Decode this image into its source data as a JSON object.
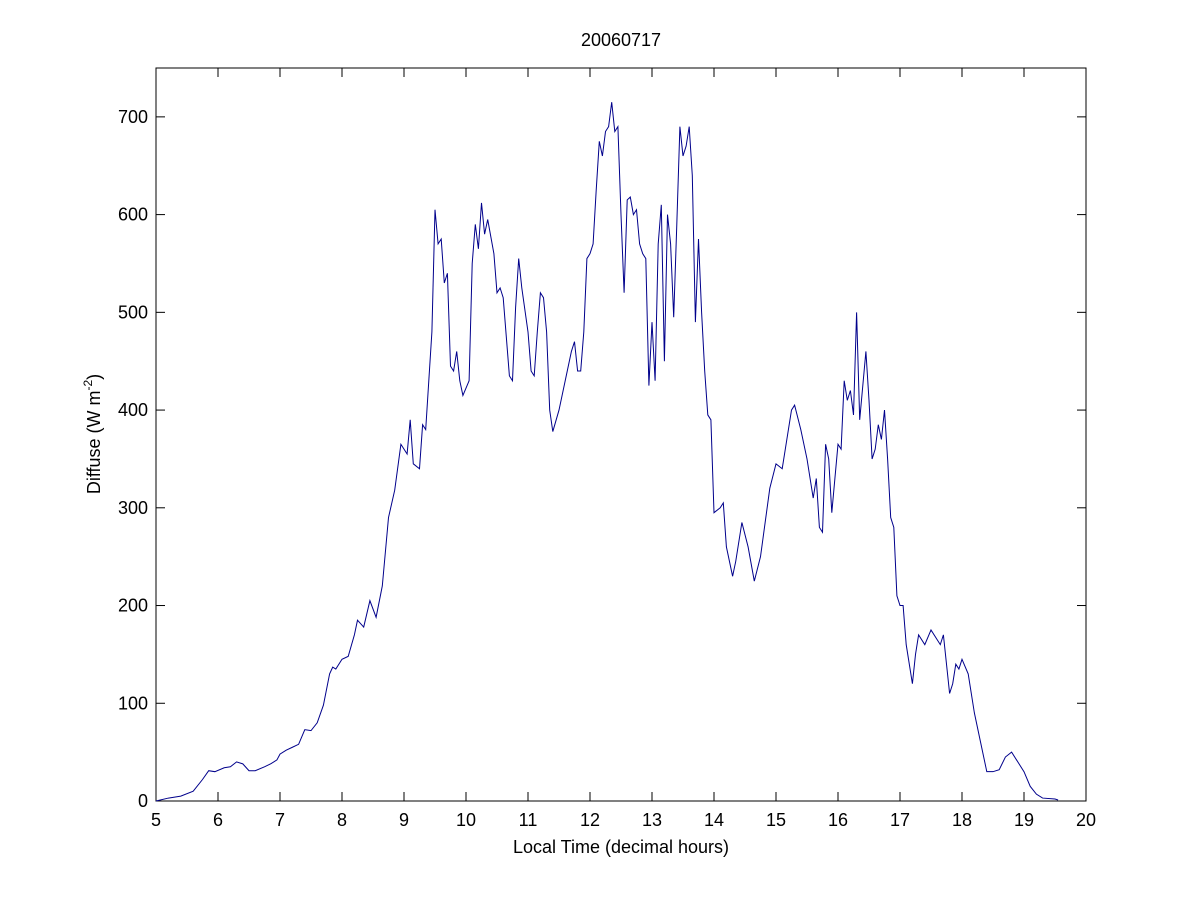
{
  "chart_data": {
    "type": "line",
    "title": "20060717",
    "xlabel": "Local Time (decimal hours)",
    "ylabel": "Diffuse (W m",
    "ylabel_superscript": "-2",
    "ylabel_suffix": ")",
    "xlim": [
      5,
      20
    ],
    "ylim": [
      0,
      750
    ],
    "xticks": [
      5,
      6,
      7,
      8,
      9,
      10,
      11,
      12,
      13,
      14,
      15,
      16,
      17,
      18,
      19,
      20
    ],
    "yticks": [
      0,
      100,
      200,
      300,
      400,
      500,
      600,
      700
    ],
    "x": [
      5.0,
      5.2,
      5.4,
      5.6,
      5.75,
      5.85,
      5.95,
      6.1,
      6.2,
      6.3,
      6.4,
      6.5,
      6.6,
      6.75,
      6.85,
      6.95,
      7.0,
      7.1,
      7.2,
      7.3,
      7.4,
      7.5,
      7.6,
      7.7,
      7.8,
      7.85,
      7.9,
      8.0,
      8.1,
      8.2,
      8.25,
      8.35,
      8.45,
      8.55,
      8.65,
      8.75,
      8.85,
      8.95,
      9.0,
      9.05,
      9.1,
      9.15,
      9.25,
      9.3,
      9.35,
      9.45,
      9.5,
      9.55,
      9.6,
      9.65,
      9.7,
      9.75,
      9.8,
      9.85,
      9.9,
      9.95,
      10.05,
      10.1,
      10.15,
      10.2,
      10.25,
      10.3,
      10.35,
      10.45,
      10.5,
      10.55,
      10.6,
      10.7,
      10.75,
      10.8,
      10.85,
      10.9,
      11.0,
      11.05,
      11.1,
      11.15,
      11.2,
      11.25,
      11.3,
      11.35,
      11.4,
      11.5,
      11.6,
      11.7,
      11.75,
      11.8,
      11.85,
      11.9,
      11.95,
      12.0,
      12.05,
      12.1,
      12.15,
      12.2,
      12.25,
      12.3,
      12.35,
      12.4,
      12.45,
      12.5,
      12.55,
      12.6,
      12.65,
      12.7,
      12.75,
      12.8,
      12.85,
      12.9,
      12.95,
      13.0,
      13.05,
      13.1,
      13.15,
      13.2,
      13.25,
      13.3,
      13.35,
      13.4,
      13.45,
      13.5,
      13.55,
      13.6,
      13.65,
      13.7,
      13.75,
      13.8,
      13.85,
      13.9,
      13.95,
      14.0,
      14.1,
      14.15,
      14.2,
      14.3,
      14.35,
      14.45,
      14.55,
      14.65,
      14.75,
      14.9,
      15.0,
      15.1,
      15.15,
      15.25,
      15.3,
      15.4,
      15.5,
      15.6,
      15.65,
      15.7,
      15.75,
      15.8,
      15.85,
      15.9,
      15.95,
      16.0,
      16.05,
      16.1,
      16.15,
      16.2,
      16.25,
      16.3,
      16.35,
      16.45,
      16.5,
      16.55,
      16.6,
      16.65,
      16.7,
      16.75,
      16.8,
      16.85,
      16.9,
      16.95,
      17.0,
      17.05,
      17.1,
      17.2,
      17.25,
      17.3,
      17.4,
      17.5,
      17.6,
      17.65,
      17.7,
      17.8,
      17.85,
      17.9,
      17.95,
      18.0,
      18.1,
      18.2,
      18.3,
      18.4,
      18.5,
      18.6,
      18.7,
      18.8,
      18.9,
      19.0,
      19.1,
      19.2,
      19.3,
      19.5,
      19.55
    ],
    "series": [
      {
        "color": "#00008b",
        "values": [
          0,
          3,
          5,
          10,
          22,
          31,
          30,
          34,
          35,
          40,
          38,
          31,
          31,
          35,
          38,
          42,
          48,
          52,
          55,
          58,
          73,
          72,
          80,
          98,
          130,
          137,
          135,
          145,
          148,
          170,
          185,
          178,
          205,
          188,
          220,
          290,
          318,
          365,
          360,
          355,
          390,
          345,
          340,
          385,
          380,
          480,
          605,
          570,
          575,
          530,
          540,
          445,
          440,
          460,
          430,
          415,
          430,
          550,
          590,
          565,
          612,
          580,
          595,
          560,
          520,
          525,
          515,
          435,
          430,
          505,
          555,
          525,
          480,
          440,
          435,
          480,
          520,
          515,
          480,
          400,
          378,
          400,
          430,
          460,
          470,
          440,
          440,
          480,
          555,
          560,
          570,
          625,
          675,
          660,
          685,
          690,
          715,
          685,
          690,
          600,
          520,
          615,
          618,
          600,
          605,
          570,
          560,
          555,
          425,
          490,
          430,
          570,
          610,
          450,
          600,
          570,
          495,
          590,
          690,
          660,
          670,
          690,
          640,
          490,
          575,
          500,
          440,
          395,
          390,
          295,
          300,
          305,
          260,
          230,
          245,
          285,
          260,
          225,
          250,
          320,
          345,
          340,
          360,
          400,
          405,
          380,
          350,
          310,
          330,
          280,
          275,
          365,
          350,
          295,
          330,
          365,
          360,
          430,
          410,
          420,
          395,
          500,
          390,
          460,
          410,
          350,
          360,
          385,
          370,
          400,
          350,
          290,
          280,
          210,
          200,
          200,
          160,
          120,
          150,
          170,
          160,
          175,
          165,
          160,
          170,
          110,
          120,
          140,
          135,
          145,
          130,
          90,
          60,
          30,
          30,
          32,
          45,
          50,
          40,
          30,
          15,
          7,
          3,
          2,
          1
        ]
      }
    ]
  }
}
